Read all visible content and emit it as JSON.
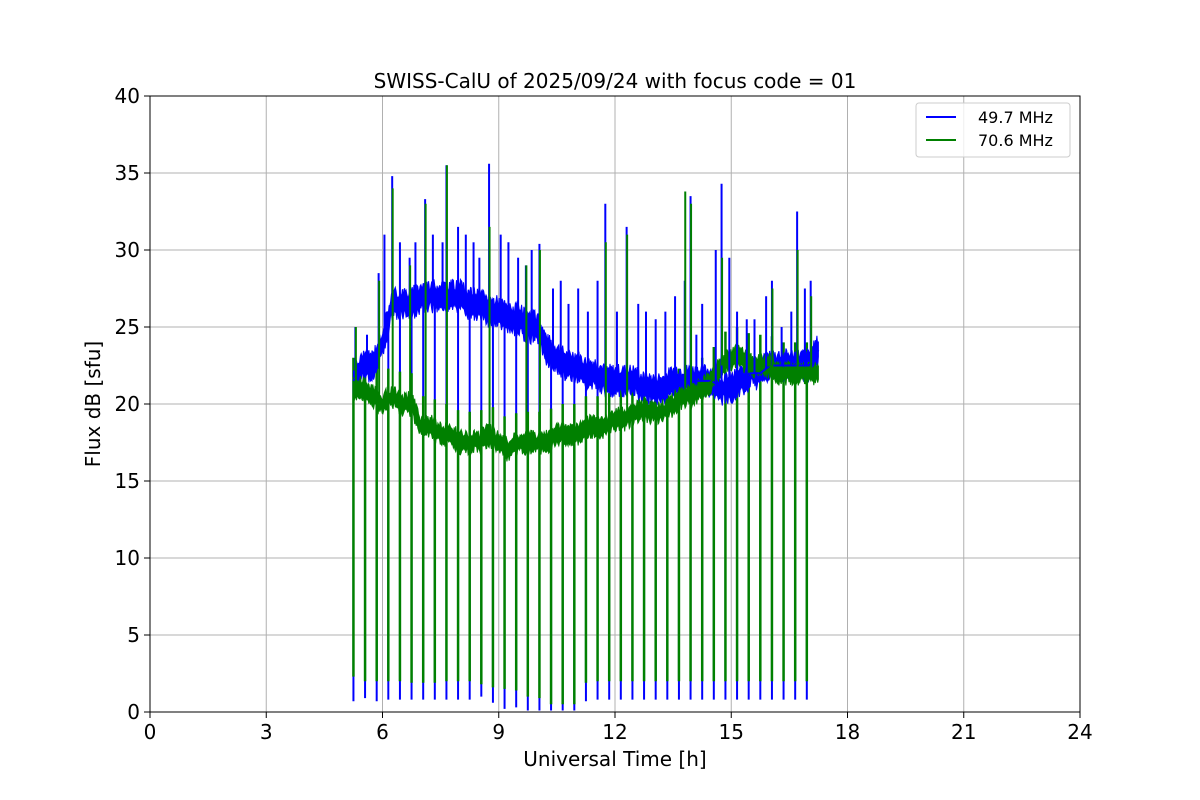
{
  "chart_data": {
    "type": "line",
    "title": "SWISS-CalU of 2025/09/24 with focus code = 01",
    "xlabel": "Universal Time [h]",
    "ylabel": "Flux dB [sfu]",
    "xlim": [
      0,
      24
    ],
    "ylim": [
      0,
      40
    ],
    "xticks": [
      0,
      3,
      6,
      9,
      12,
      15,
      18,
      21,
      24
    ],
    "yticks": [
      0,
      5,
      10,
      15,
      20,
      25,
      30,
      35,
      40
    ],
    "xtick_labels": [
      "0",
      "3",
      "6",
      "9",
      "12",
      "15",
      "18",
      "21",
      "24"
    ],
    "ytick_labels": [
      "0",
      "5",
      "10",
      "15",
      "20",
      "25",
      "30",
      "35",
      "40"
    ],
    "grid": true,
    "legend_position": "top-right",
    "series": [
      {
        "name": "49.7 MHz",
        "color": "#0000ff",
        "x": [
          5.25,
          5.5,
          5.75,
          6.0,
          6.25,
          6.5,
          6.75,
          7.0,
          7.25,
          7.5,
          7.75,
          8.0,
          8.25,
          8.5,
          8.75,
          9.0,
          9.25,
          9.5,
          9.75,
          10.0,
          10.25,
          10.5,
          10.75,
          11.0,
          11.25,
          11.5,
          11.75,
          12.0,
          12.25,
          12.5,
          12.75,
          13.0,
          13.25,
          13.5,
          13.75,
          14.0,
          14.25,
          14.5,
          14.75,
          15.0,
          15.25,
          15.5,
          15.75,
          16.0,
          16.25,
          16.5,
          16.75,
          17.0,
          17.25
        ],
        "y": [
          21.5,
          22.5,
          22.5,
          24.0,
          26.5,
          26.5,
          26.5,
          27.0,
          27.0,
          27.0,
          27.0,
          27.0,
          26.5,
          26.5,
          26.0,
          26.0,
          25.5,
          25.5,
          25.0,
          25.0,
          23.5,
          23.0,
          22.5,
          22.5,
          22.0,
          22.0,
          21.5,
          21.5,
          21.5,
          21.5,
          21.0,
          21.0,
          21.0,
          21.5,
          21.5,
          21.5,
          21.5,
          21.5,
          21.0,
          21.0,
          21.5,
          22.0,
          22.0,
          22.5,
          22.5,
          22.5,
          22.5,
          22.5,
          23.5
        ]
      },
      {
        "name": "70.6 MHz",
        "color": "#008000",
        "x": [
          5.25,
          5.5,
          5.75,
          6.0,
          6.25,
          6.5,
          6.75,
          7.0,
          7.25,
          7.5,
          7.75,
          8.0,
          8.25,
          8.5,
          8.75,
          9.0,
          9.25,
          9.5,
          9.75,
          10.0,
          10.25,
          10.5,
          10.75,
          11.0,
          11.25,
          11.5,
          11.75,
          12.0,
          12.25,
          12.5,
          12.75,
          13.0,
          13.25,
          13.5,
          13.75,
          14.0,
          14.25,
          14.5,
          14.75,
          15.0,
          15.25,
          15.5,
          15.75,
          16.0,
          16.25,
          16.5,
          16.75,
          17.0,
          17.25
        ],
        "y": [
          21.0,
          21.0,
          20.5,
          20.0,
          20.5,
          20.0,
          20.0,
          18.5,
          18.5,
          18.0,
          18.0,
          17.5,
          17.5,
          17.5,
          18.0,
          17.5,
          17.0,
          17.5,
          17.5,
          17.5,
          17.5,
          18.0,
          18.0,
          18.0,
          18.5,
          18.5,
          18.5,
          19.0,
          19.0,
          19.5,
          19.5,
          19.5,
          19.5,
          20.0,
          20.5,
          20.5,
          21.0,
          21.5,
          22.5,
          23.0,
          23.0,
          22.5,
          22.5,
          22.5,
          22.0,
          22.0,
          22.0,
          22.0,
          22.0
        ]
      }
    ],
    "calibration_dips": {
      "x": [
        5.25,
        5.55,
        5.85,
        6.15,
        6.45,
        6.75,
        7.05,
        7.35,
        7.65,
        7.95,
        8.25,
        8.55,
        8.85,
        9.15,
        9.45,
        9.75,
        10.05,
        10.35,
        10.65,
        10.95,
        11.25,
        11.55,
        11.85,
        12.15,
        12.45,
        12.75,
        13.05,
        13.35,
        13.65,
        13.95,
        14.25,
        14.55,
        14.85,
        15.15,
        15.45,
        15.75,
        16.05,
        16.35,
        16.65,
        16.95
      ],
      "blue_min": [
        0.7,
        0.9,
        0.7,
        0.8,
        0.8,
        0.8,
        0.8,
        0.8,
        0.8,
        0.8,
        0.8,
        1.0,
        0.6,
        0.2,
        0.3,
        0.1,
        0.1,
        0.1,
        0.1,
        0.1,
        0.7,
        0.8,
        0.8,
        0.8,
        0.8,
        0.8,
        0.8,
        0.8,
        0.8,
        0.8,
        0.8,
        0.8,
        0.8,
        0.8,
        0.8,
        0.8,
        0.8,
        0.8,
        0.8,
        0.8
      ],
      "green_min": [
        2.3,
        2.0,
        2.0,
        2.0,
        2.0,
        1.9,
        1.9,
        1.9,
        2.0,
        2.0,
        2.0,
        1.8,
        1.6,
        1.5,
        1.4,
        1.0,
        0.9,
        0.5,
        0.5,
        0.5,
        1.9,
        2.0,
        2.0,
        2.0,
        2.0,
        2.0,
        2.0,
        2.0,
        2.0,
        2.0,
        2.0,
        2.0,
        2.0,
        2.0,
        2.0,
        2.0,
        2.0,
        2.0,
        2.0,
        2.0
      ]
    },
    "spikes": {
      "blue": {
        "x": [
          5.3,
          5.6,
          5.9,
          6.05,
          6.25,
          6.45,
          6.7,
          6.85,
          7.1,
          7.3,
          7.55,
          7.65,
          7.95,
          8.15,
          8.35,
          8.5,
          8.75,
          9.05,
          9.25,
          9.5,
          9.7,
          9.85,
          10.05,
          10.4,
          10.6,
          10.8,
          11.05,
          11.3,
          11.55,
          11.75,
          12.05,
          12.3,
          12.6,
          12.8,
          13.05,
          13.3,
          13.55,
          13.8,
          13.95,
          14.1,
          14.25,
          14.6,
          14.75,
          14.95,
          15.15,
          15.4,
          15.6,
          15.9,
          16.05,
          16.3,
          16.55,
          16.7,
          16.9,
          17.05
        ],
        "y": [
          25.0,
          24.5,
          28.5,
          31.0,
          34.8,
          30.5,
          29.5,
          30.5,
          33.3,
          31.0,
          30.5,
          35.5,
          31.5,
          31.0,
          30.5,
          29.5,
          35.6,
          31.0,
          30.5,
          29.5,
          29.0,
          30.0,
          30.4,
          27.5,
          28.0,
          26.5,
          27.5,
          26.0,
          28.0,
          33.0,
          26.0,
          31.5,
          26.5,
          26.0,
          25.5,
          26.0,
          27.0,
          28.0,
          33.5,
          24.5,
          26.5,
          30.0,
          34.3,
          29.5,
          26.0,
          25.5,
          25.5,
          27.0,
          28.0,
          25.0,
          26.0,
          32.5,
          27.5,
          28.0
        ]
      },
      "green": {
        "x": [
          5.3,
          5.9,
          6.25,
          6.7,
          7.1,
          7.65,
          8.75,
          9.7,
          10.05,
          11.75,
          12.3,
          13.8,
          13.95,
          14.75,
          16.05,
          16.7,
          17.05
        ],
        "y": [
          25.0,
          28.0,
          34.0,
          29.0,
          33.0,
          35.5,
          31.5,
          29.0,
          30.0,
          30.5,
          31.0,
          33.8,
          33.0,
          29.5,
          27.5,
          30.0,
          27.0
        ]
      }
    }
  }
}
